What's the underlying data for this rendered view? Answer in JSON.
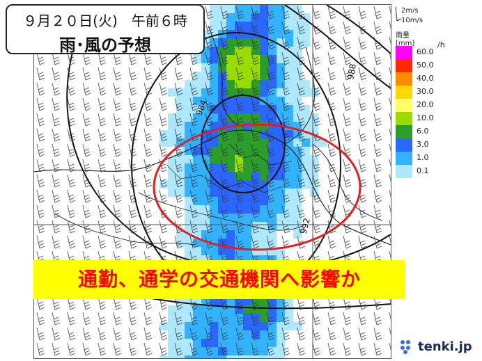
{
  "title": {
    "line1": "９月２０日(火)　午前６時",
    "line2": "雨･風の予想"
  },
  "headline": "通勤、通学の交通機関へ影響か",
  "map": {
    "isobar_labels": [
      "984",
      "988",
      "992"
    ],
    "highlight_color": "#e02020"
  },
  "legend": {
    "wind_keys": [
      "2m/s",
      "10m/s"
    ],
    "title_line1": "雨量",
    "title_line2": "[mm]",
    "unit": "/h",
    "bins": [
      {
        "label": "60.0",
        "color": "#ff00ff"
      },
      {
        "label": "50.0",
        "color": "#ff2a00"
      },
      {
        "label": "40.0",
        "color": "#ff8c00"
      },
      {
        "label": "30.0",
        "color": "#ffd700"
      },
      {
        "label": "20.0",
        "color": "#ffff66"
      },
      {
        "label": "10.0",
        "color": "#99dd00"
      },
      {
        "label": "6.0",
        "color": "#2a9d2a"
      },
      {
        "label": "3.0",
        "color": "#2a66ff"
      },
      {
        "label": "1.0",
        "color": "#33b3ff"
      },
      {
        "label": "0.1",
        "color": "#aee8ff"
      }
    ]
  },
  "logo": {
    "text": "tenki.jp"
  }
}
